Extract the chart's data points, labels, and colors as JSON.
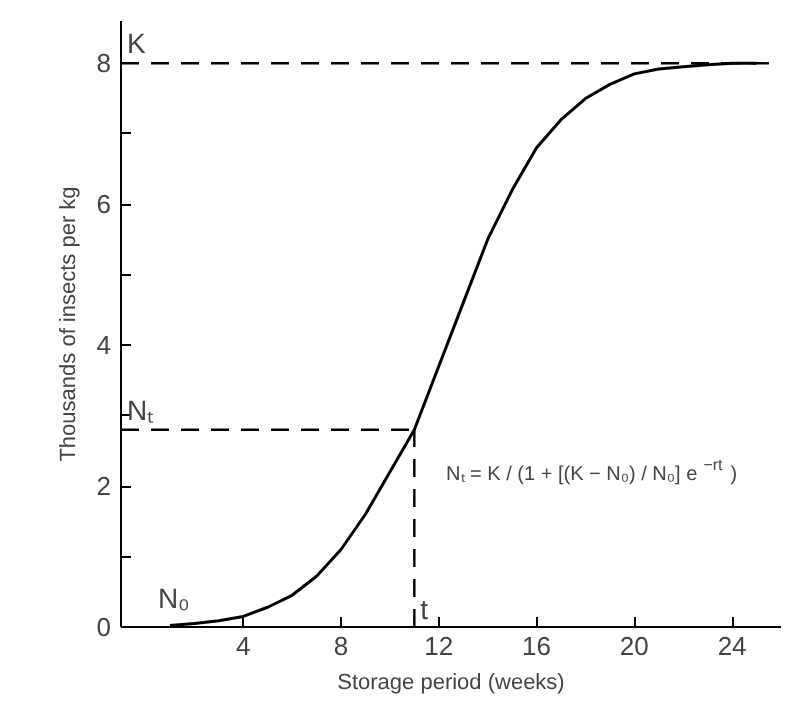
{
  "chart_data": {
    "type": "line",
    "xlabel": "Storage period (weeks)",
    "ylabel": "Thousands of insects per kg",
    "x": [
      1,
      2,
      3,
      4,
      5,
      6,
      7,
      8,
      9,
      10,
      11,
      12,
      13,
      14,
      15,
      16,
      17,
      18,
      19,
      20,
      21,
      22,
      23,
      24,
      25
    ],
    "series": [
      {
        "color": "#000000",
        "values": [
          0.02,
          0.05,
          0.09,
          0.15,
          0.28,
          0.45,
          0.72,
          1.1,
          1.6,
          2.2,
          2.8,
          3.7,
          4.6,
          5.5,
          6.2,
          6.8,
          7.2,
          7.5,
          7.7,
          7.85,
          7.92,
          7.95,
          7.98,
          8.0,
          8.0
        ]
      }
    ],
    "xlim": [
      -1,
      26
    ],
    "ylim": [
      0,
      8.6
    ],
    "xticks": [
      4,
      8,
      12,
      16,
      20,
      24
    ],
    "yticks": [
      0,
      {
        "value": 1,
        "label": null
      },
      2,
      {
        "value": 3,
        "label": null
      },
      4,
      {
        "value": 5,
        "label": null
      },
      6,
      {
        "value": 7,
        "label": null
      },
      8
    ],
    "ref_lines": [
      {
        "axis": "y",
        "value": 8,
        "label": "K",
        "line_style": "dashed"
      },
      {
        "axis": "y",
        "value": 2.8,
        "label": "Nₜ",
        "line_style": "dashed"
      },
      {
        "axis": "x",
        "value": 11,
        "label": "t",
        "line_style": "dashed"
      }
    ],
    "annotations": [
      {
        "text": "N₀",
        "x": 1,
        "y": 0.02
      },
      "Nₜ = K / (1 + [(K − N₀) / N₀] e$^{−rt}$)"
    ],
    "grid": false,
    "marker": "none",
    "line_style": "solid"
  }
}
